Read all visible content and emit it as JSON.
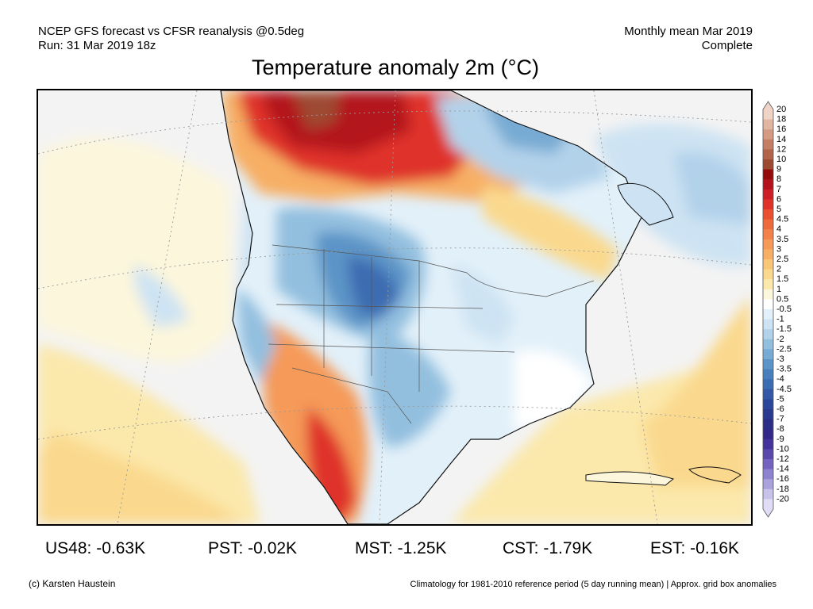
{
  "header": {
    "line1_left": "NCEP GFS forecast vs CFSR reanalysis @0.5deg",
    "line2_left": "Run: 31 Mar 2019 18z",
    "line1_right": "Monthly mean Mar 2019",
    "line2_right": "Complete"
  },
  "title": "Temperature anomaly 2m (°C)",
  "legend": {
    "labels": [
      "20",
      "18",
      "16",
      "14",
      "12",
      "10",
      "9",
      "8",
      "7",
      "6",
      "5",
      "4.5",
      "4",
      "3.5",
      "3",
      "2.5",
      "2",
      "1.5",
      "1",
      "0.5",
      "-0.5",
      "-1",
      "-1.5",
      "-2",
      "-2.5",
      "-3",
      "-3.5",
      "-4",
      "-4.5",
      "-5",
      "-6",
      "-7",
      "-8",
      "-9",
      "-10",
      "-12",
      "-14",
      "-16",
      "-18",
      "-20"
    ],
    "colors": [
      "#eed3c6",
      "#e2b5a0",
      "#d49b82",
      "#c47e64",
      "#b16447",
      "#9e4a30",
      "#950b0b",
      "#b3141b",
      "#cd1f26",
      "#df332a",
      "#e8502f",
      "#ee6a3a",
      "#f2824a",
      "#f59a58",
      "#f7af65",
      "#f9c678",
      "#fad98e",
      "#fbe8ab",
      "#fcf6dc",
      "#ffffff",
      "#e2f0f9",
      "#cde3f3",
      "#b2d2ea",
      "#93bfdf",
      "#78abd3",
      "#5b94c7",
      "#4a7fbd",
      "#3c6cb1",
      "#3258a6",
      "#2b479b",
      "#293a8f",
      "#2a2f85",
      "#33288a",
      "#44339a",
      "#5a48ad",
      "#7564bf",
      "#8e83cf",
      "#a9a2dc",
      "#c7c2ea",
      "#e1dcf5"
    ]
  },
  "stats": [
    {
      "label": "US48: -0.63K"
    },
    {
      "label": "PST: -0.02K"
    },
    {
      "label": "MST: -1.25K"
    },
    {
      "label": "CST: -1.79K"
    },
    {
      "label": "EST: -0.16K"
    }
  ],
  "footer": {
    "credit": "(c) Karsten Haustein",
    "note": "Climatology for 1981-2010 reference period (5 day running mean) | Approx. grid box anomalies"
  }
}
